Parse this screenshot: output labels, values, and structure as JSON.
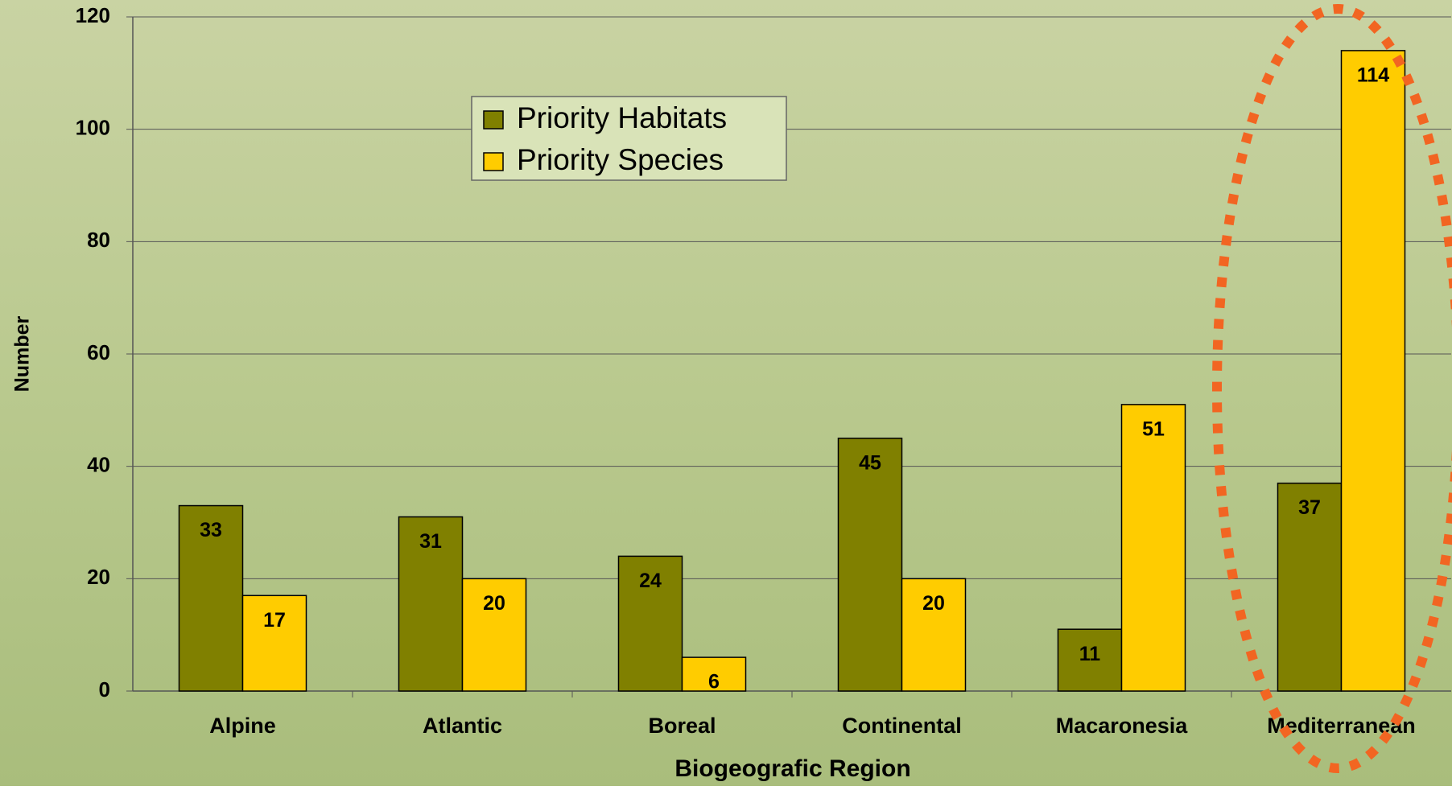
{
  "chart_data": {
    "type": "bar",
    "x_label": "Biogeografic Region",
    "y_label": "Number",
    "categories": [
      "Alpine",
      "Atlantic",
      "Boreal",
      "Continental",
      "Macaronesia",
      "Mediterranean"
    ],
    "series": [
      {
        "name": "Priority Habitats",
        "color": "#808000",
        "values": [
          33,
          31,
          24,
          45,
          11,
          37
        ]
      },
      {
        "name": "Priority Species",
        "color": "#ffcc00",
        "values": [
          17,
          20,
          6,
          20,
          51,
          114
        ]
      }
    ],
    "ylim": [
      0,
      120
    ],
    "yticks": [
      0,
      20,
      40,
      60,
      80,
      100,
      120
    ],
    "grid": true,
    "legend": "top-center"
  }
}
